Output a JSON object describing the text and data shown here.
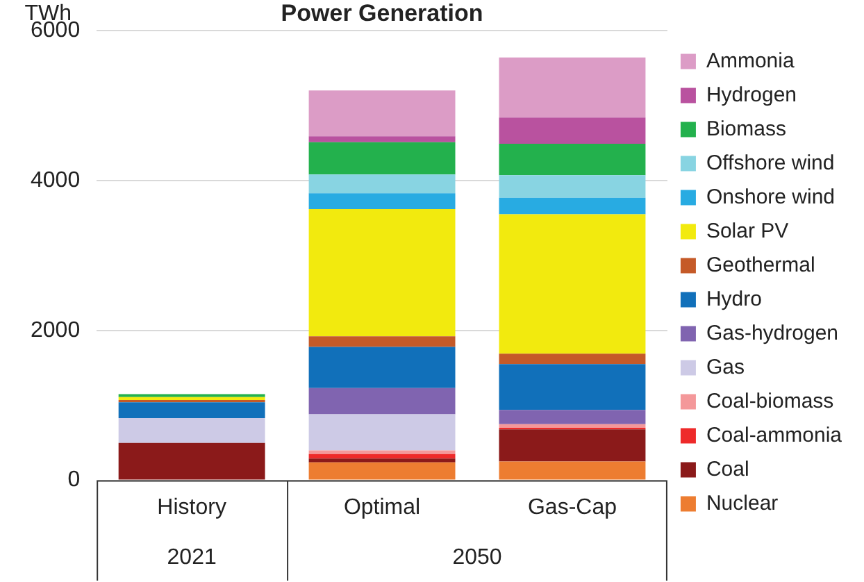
{
  "chart_data": {
    "type": "bar",
    "title": "Power Generation",
    "ylabel": "TWh",
    "categories": [
      "History",
      "Optimal",
      "Gas-Cap"
    ],
    "annotations": [
      "2021",
      "2050"
    ],
    "stacked": true,
    "ylim": [
      0,
      6000
    ],
    "yticks": [
      0,
      2000,
      4000,
      6000
    ],
    "grid": "y",
    "legend": "right",
    "series": [
      {
        "name": "Nuclear",
        "color": "#ed7d31",
        "values": [
          0,
          240,
          250
        ]
      },
      {
        "name": "Coal",
        "color": "#8b1a1a",
        "values": [
          500,
          50,
          430
        ]
      },
      {
        "name": "Coal-ammonia",
        "color": "#ee2a2a",
        "values": [
          0,
          60,
          20
        ]
      },
      {
        "name": "Coal-biomass",
        "color": "#f4989a",
        "values": [
          0,
          50,
          50
        ]
      },
      {
        "name": "Gas",
        "color": "#cdcae6",
        "values": [
          330,
          480,
          null
        ]
      },
      {
        "name": "Gas-hydrogen",
        "color": "#8064b0",
        "values": [
          0,
          350,
          190
        ]
      },
      {
        "name": "Hydro",
        "color": "#1170ba",
        "values": [
          210,
          550,
          610
        ]
      },
      {
        "name": "Geothermal",
        "color": "#c55a28",
        "values": [
          30,
          140,
          140
        ]
      },
      {
        "name": "Solar PV",
        "color": "#f2ea0e",
        "values": [
          40,
          1700,
          1860
        ]
      },
      {
        "name": "Onshore wind",
        "color": "#28abe2",
        "values": [
          null,
          210,
          220
        ]
      },
      {
        "name": "Offshore wind",
        "color": "#88d4e2",
        "values": [
          0,
          250,
          300
        ]
      },
      {
        "name": "Biomass",
        "color": "#23b14d",
        "values": [
          40,
          430,
          420
        ]
      },
      {
        "name": "Hydrogen",
        "color": "#b9529f",
        "values": [
          0,
          80,
          350
        ]
      },
      {
        "name": "Ammonia",
        "color": "#dc9cc6",
        "values": [
          0,
          610,
          800
        ]
      }
    ]
  }
}
